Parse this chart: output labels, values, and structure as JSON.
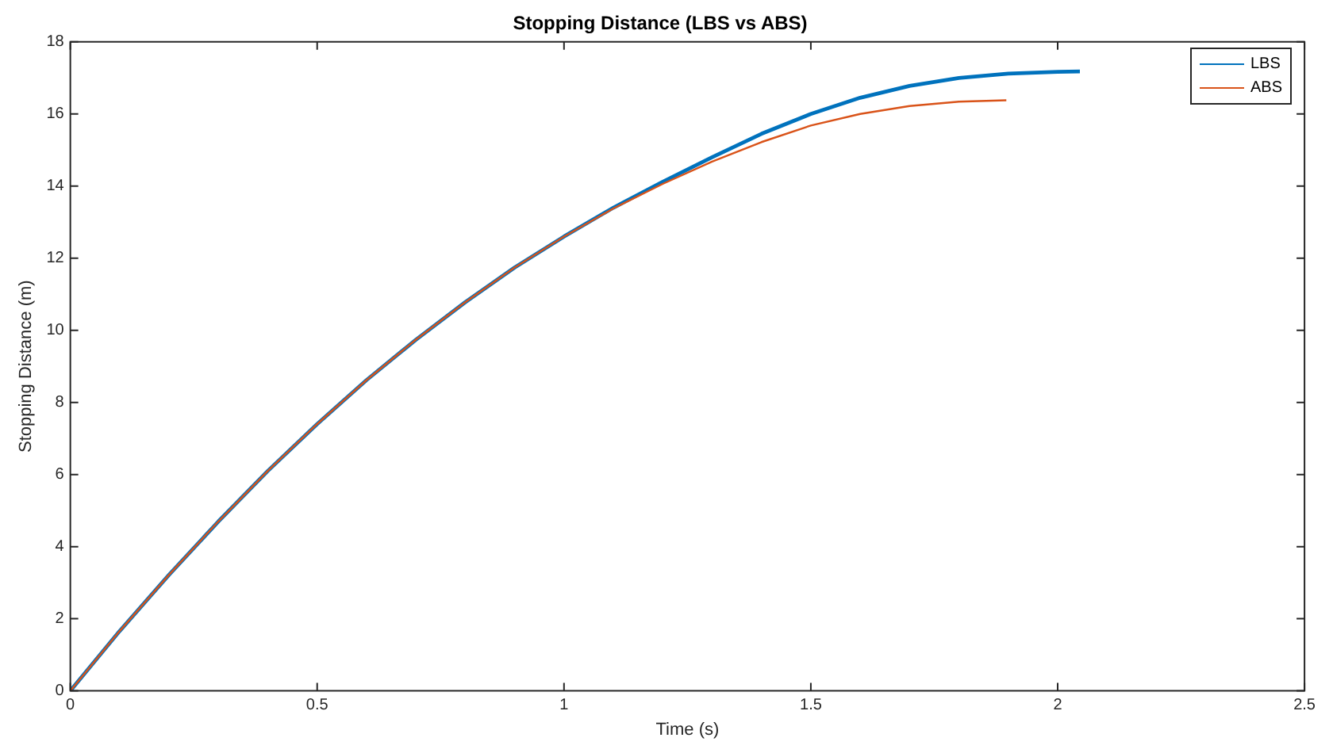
{
  "chart_data": {
    "type": "line",
    "title": "Stopping Distance (LBS vs ABS)",
    "xlabel": "Time (s)",
    "ylabel": "Stopping Distance (m)",
    "xlim": [
      0,
      2.5
    ],
    "xticks": [
      0,
      0.5,
      1,
      1.5,
      2,
      2.5
    ],
    "ylim": [
      0,
      18
    ],
    "yticks": [
      0,
      2,
      4,
      6,
      8,
      10,
      12,
      14,
      16,
      18
    ],
    "grid": false,
    "legend": "top right",
    "marker": "none",
    "line_style": "solid",
    "series": [
      {
        "name": "LBS",
        "color": "#0072bd",
        "x": [
          0,
          0.1,
          0.2,
          0.3,
          0.4,
          0.5,
          0.6,
          0.7,
          0.8,
          0.9,
          1.0,
          1.1,
          1.2,
          1.3,
          1.4,
          1.5,
          1.6,
          1.7,
          1.8,
          1.9,
          2.0,
          2.045
        ],
        "values": [
          0,
          1.66,
          3.22,
          4.7,
          6.1,
          7.4,
          8.62,
          9.74,
          10.78,
          11.74,
          12.6,
          13.4,
          14.12,
          14.8,
          15.45,
          16.0,
          16.45,
          16.78,
          17.0,
          17.12,
          17.17,
          17.18
        ]
      },
      {
        "name": "ABS",
        "color": "#d95319",
        "x": [
          0,
          0.1,
          0.2,
          0.3,
          0.4,
          0.5,
          0.6,
          0.7,
          0.8,
          0.9,
          1.0,
          1.1,
          1.2,
          1.3,
          1.4,
          1.5,
          1.6,
          1.7,
          1.8,
          1.896
        ],
        "values": [
          0,
          1.66,
          3.22,
          4.7,
          6.1,
          7.4,
          8.62,
          9.74,
          10.78,
          11.74,
          12.6,
          13.38,
          14.06,
          14.68,
          15.22,
          15.68,
          16.0,
          16.22,
          16.34,
          16.38
        ]
      }
    ]
  }
}
